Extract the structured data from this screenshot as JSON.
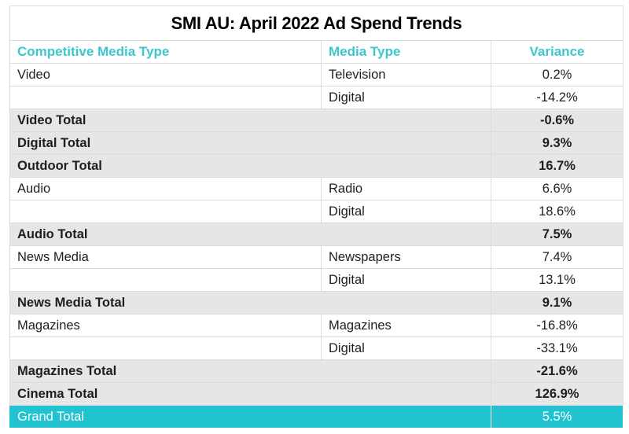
{
  "title": "SMI AU: April 2022 Ad Spend Trends",
  "colors": {
    "accent": "#22c3d0",
    "header_text": "#3cc6cf",
    "total_bg": "#e6e6e6"
  },
  "columns": [
    "Competitive Media Type",
    "Media Type",
    "Variance"
  ],
  "rows": [
    {
      "type": "detail",
      "competitive": "Video",
      "media": "Television",
      "variance": "0.2%"
    },
    {
      "type": "detail",
      "competitive": "",
      "media": "Digital",
      "variance": "-14.2%"
    },
    {
      "type": "total",
      "competitive": "Video Total",
      "media": "",
      "variance": "-0.6%"
    },
    {
      "type": "total",
      "competitive": "Digital Total",
      "media": "",
      "variance": "9.3%"
    },
    {
      "type": "total",
      "competitive": "Outdoor Total",
      "media": "",
      "variance": "16.7%"
    },
    {
      "type": "detail",
      "competitive": "Audio",
      "media": "Radio",
      "variance": "6.6%"
    },
    {
      "type": "detail",
      "competitive": "",
      "media": "Digital",
      "variance": "18.6%"
    },
    {
      "type": "total",
      "competitive": "Audio Total",
      "media": "",
      "variance": "7.5%"
    },
    {
      "type": "detail",
      "competitive": "News Media",
      "media": "Newspapers",
      "variance": "7.4%"
    },
    {
      "type": "detail",
      "competitive": "",
      "media": "Digital",
      "variance": "13.1%"
    },
    {
      "type": "total",
      "competitive": "News Media Total",
      "media": "",
      "variance": "9.1%"
    },
    {
      "type": "detail",
      "competitive": "Magazines",
      "media": "Magazines",
      "variance": "-16.8%"
    },
    {
      "type": "detail",
      "competitive": "",
      "media": "Digital",
      "variance": "-33.1%"
    },
    {
      "type": "total",
      "competitive": "Magazines Total",
      "media": "",
      "variance": "-21.6%"
    },
    {
      "type": "total",
      "competitive": "Cinema Total",
      "media": "",
      "variance": "126.9%"
    }
  ],
  "grand_total": {
    "label": "Grand Total",
    "variance": "5.5%"
  }
}
